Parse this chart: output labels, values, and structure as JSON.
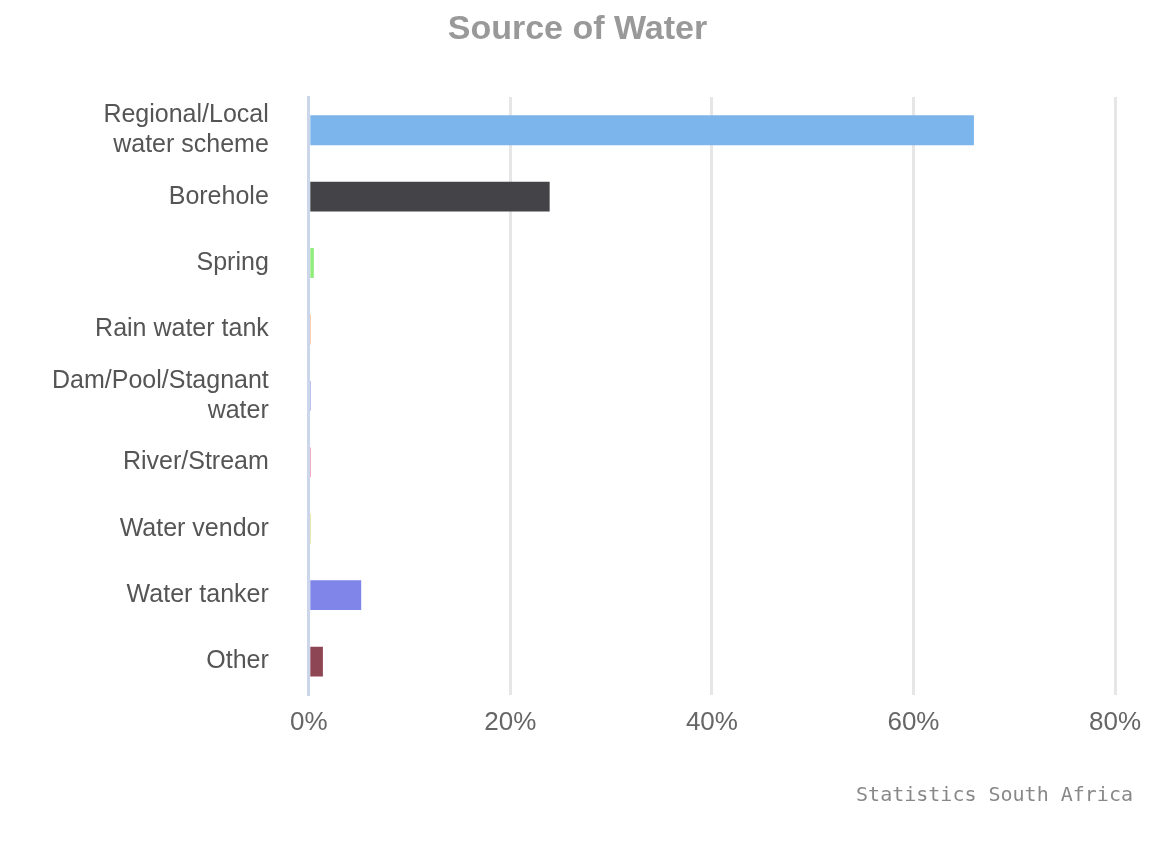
{
  "chart_data": {
    "type": "bar",
    "orientation": "horizontal",
    "title": "Source of Water",
    "categories": [
      "Regional/Local water scheme",
      "Borehole",
      "Spring",
      "Rain water tank",
      "Dam/Pool/Stagnant water",
      "River/Stream",
      "Water vendor",
      "Water tanker",
      "Other"
    ],
    "values": [
      66.0,
      23.9,
      0.5,
      0.2,
      0.2,
      0.2,
      0.2,
      5.2,
      1.4
    ],
    "colors": [
      "#7cb5ec",
      "#434348",
      "#90ed7d",
      "#f7a35c",
      "#8085e9",
      "#f15c80",
      "#e4d354",
      "#8085e9",
      "#8d4653"
    ],
    "xlim": [
      0,
      80
    ],
    "xticks": [
      {
        "value": 0,
        "label": "0%"
      },
      {
        "value": 20,
        "label": "20%"
      },
      {
        "value": 40,
        "label": "40%"
      },
      {
        "value": 60,
        "label": "60%"
      },
      {
        "value": 80,
        "label": "80%"
      }
    ],
    "grid": "x",
    "legend": false,
    "annotations": [
      "Statistics South Africa"
    ]
  }
}
